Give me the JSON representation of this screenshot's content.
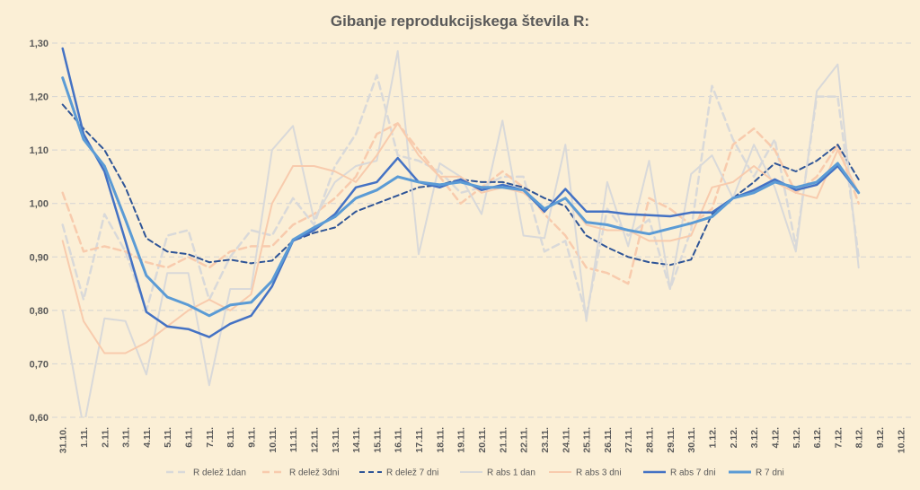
{
  "chart_data": {
    "type": "line",
    "title": "Gibanje reprodukcijskega števila R:",
    "xlabel": "",
    "ylabel": "",
    "ylim": [
      0.6,
      1.3
    ],
    "yticks": [
      "0,60",
      "0,70",
      "0,80",
      "0,90",
      "1,00",
      "1,10",
      "1,20",
      "1,30"
    ],
    "ytick_values": [
      0.6,
      0.7,
      0.8,
      0.9,
      1.0,
      1.1,
      1.2,
      1.3
    ],
    "grid": true,
    "legend_position": "bottom",
    "categories": [
      "31.10.",
      "1.11.",
      "2.11.",
      "3.11.",
      "4.11.",
      "5.11.",
      "6.11.",
      "7.11.",
      "8.11.",
      "9.11.",
      "10.11.",
      "11.11.",
      "12.11.",
      "13.11.",
      "14.11.",
      "15.11.",
      "16.11.",
      "17.11.",
      "18.11.",
      "19.11.",
      "20.11.",
      "21.11.",
      "22.11.",
      "23.11.",
      "24.11.",
      "25.11.",
      "26.11.",
      "27.11.",
      "28.11.",
      "29.11.",
      "30.11.",
      "1.12.",
      "2.12.",
      "3.12.",
      "4.12.",
      "5.12.",
      "6.12.",
      "7.12.",
      "8.12.",
      "9.12.",
      "10.12."
    ],
    "series": [
      {
        "name": "R delež 1dan",
        "color": "#d9d9d9",
        "dash": "8 5",
        "width": 2.5,
        "values": [
          0.96,
          0.82,
          0.98,
          0.91,
          0.8,
          0.94,
          0.95,
          0.82,
          0.9,
          0.95,
          0.94,
          1.01,
          0.96,
          1.07,
          1.13,
          1.24,
          1.09,
          1.08,
          1.06,
          1.02,
          1.03,
          1.05,
          1.05,
          0.91,
          0.93,
          0.79,
          0.99,
          0.94,
          0.97,
          0.84,
          0.95,
          1.22,
          1.12,
          1.05,
          1.12,
          0.92,
          1.2,
          1.2,
          0.9,
          null,
          null
        ]
      },
      {
        "name": "R delež 3dni",
        "color": "#f8cbad",
        "dash": "8 5",
        "width": 2.5,
        "values": [
          1.02,
          0.91,
          0.92,
          0.91,
          0.89,
          0.88,
          0.9,
          0.88,
          0.91,
          0.92,
          0.92,
          0.96,
          0.98,
          1.01,
          1.05,
          1.13,
          1.15,
          1.1,
          1.05,
          1.0,
          1.03,
          1.06,
          1.03,
          0.98,
          0.94,
          0.88,
          0.87,
          0.85,
          1.01,
          0.99,
          0.96,
          0.99,
          1.11,
          1.14,
          1.1,
          1.02,
          1.05,
          1.11,
          1.0,
          null,
          null
        ]
      },
      {
        "name": "R delež 7 dni",
        "color": "#2f5597",
        "dash": "6 4",
        "width": 2,
        "values": [
          1.185,
          1.14,
          1.1,
          1.03,
          0.935,
          0.91,
          0.905,
          0.89,
          0.895,
          0.888,
          0.893,
          0.93,
          0.945,
          0.955,
          0.985,
          1.0,
          1.015,
          1.03,
          1.035,
          1.045,
          1.04,
          1.04,
          1.03,
          1.01,
          0.995,
          0.94,
          0.918,
          0.9,
          0.89,
          0.885,
          0.895,
          0.98,
          1.01,
          1.04,
          1.075,
          1.06,
          1.08,
          1.11,
          1.045,
          null,
          null
        ]
      },
      {
        "name": "R abs 1 dan",
        "color": "#d9d9d9",
        "dash": "",
        "width": 2,
        "values": [
          0.8,
          0.58,
          0.785,
          0.78,
          0.68,
          0.87,
          0.87,
          0.66,
          0.84,
          0.84,
          1.1,
          1.145,
          0.97,
          1.04,
          1.07,
          1.08,
          1.285,
          0.905,
          1.075,
          1.05,
          0.98,
          1.155,
          0.94,
          0.935,
          1.11,
          0.78,
          1.04,
          0.92,
          1.08,
          0.84,
          1.055,
          1.09,
          1.01,
          1.11,
          1.03,
          0.91,
          1.21,
          1.26,
          0.88,
          null,
          null
        ]
      },
      {
        "name": "R abs 3 dni",
        "color": "#f8cbad",
        "dash": "",
        "width": 2,
        "values": [
          0.93,
          0.78,
          0.72,
          0.72,
          0.74,
          0.77,
          0.8,
          0.82,
          0.8,
          0.83,
          1.0,
          1.07,
          1.07,
          1.06,
          1.04,
          1.09,
          1.15,
          1.09,
          1.05,
          1.05,
          1.02,
          1.03,
          1.02,
          0.99,
          1.01,
          0.96,
          0.95,
          0.95,
          0.93,
          0.93,
          0.94,
          1.03,
          1.04,
          1.07,
          1.04,
          1.02,
          1.01,
          1.1,
          1.02,
          null,
          null
        ]
      },
      {
        "name": "R abs 7 dni",
        "color": "#4472c4",
        "dash": "",
        "width": 2.5,
        "values": [
          1.29,
          1.13,
          1.06,
          0.93,
          0.797,
          0.77,
          0.765,
          0.75,
          0.775,
          0.79,
          0.845,
          0.93,
          0.95,
          0.98,
          1.03,
          1.04,
          1.085,
          1.04,
          1.03,
          1.045,
          1.025,
          1.035,
          1.025,
          0.985,
          1.027,
          0.985,
          0.985,
          0.98,
          0.978,
          0.976,
          0.983,
          0.983,
          1.01,
          1.025,
          1.045,
          1.025,
          1.035,
          1.07,
          1.02,
          null,
          null
        ]
      },
      {
        "name": "R 7 dni",
        "color": "#5b9bd5",
        "dash": "",
        "width": 3,
        "values": [
          1.235,
          1.12,
          1.07,
          0.97,
          0.865,
          0.825,
          0.81,
          0.79,
          0.81,
          0.815,
          0.855,
          0.932,
          0.955,
          0.975,
          1.01,
          1.025,
          1.05,
          1.04,
          1.035,
          1.04,
          1.03,
          1.03,
          1.025,
          0.99,
          1.01,
          0.965,
          0.96,
          0.95,
          0.943,
          0.953,
          0.963,
          0.975,
          1.01,
          1.02,
          1.04,
          1.03,
          1.04,
          1.075,
          1.02,
          null,
          null
        ]
      }
    ]
  }
}
